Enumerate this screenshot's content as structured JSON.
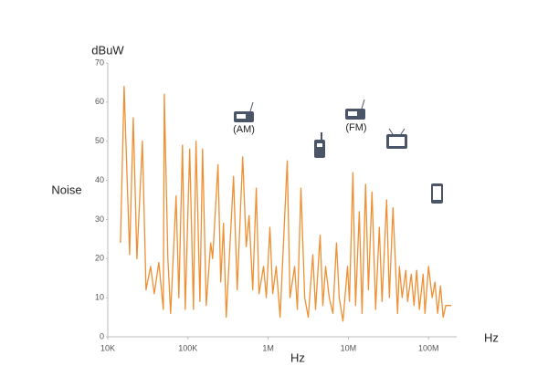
{
  "chart_data": {
    "type": "line",
    "y_unit_label": "dBuW",
    "ylabel": "Noise",
    "xlabel": "Hz",
    "x_unit_label": "Hz",
    "annotations": [
      "(AM)",
      "(FM)"
    ],
    "log_x": true,
    "color": "#ef8f33",
    "xlim": [
      10000,
      224000000
    ],
    "xticks": [
      {
        "value": 10000,
        "label": "10K"
      },
      {
        "value": 100000,
        "label": "100K"
      },
      {
        "value": 1000000,
        "label": "1M"
      },
      {
        "value": 10000000,
        "label": "10M"
      },
      {
        "value": 100000000,
        "label": "100M"
      }
    ],
    "ylim": [
      0,
      70
    ],
    "yticks": [
      0,
      10,
      20,
      30,
      40,
      50,
      60,
      70
    ],
    "x": [
      14400,
      16000,
      18700,
      20800,
      23100,
      27000,
      30000,
      34200,
      38000,
      43300,
      49300,
      50700,
      56200,
      60800,
      71100,
      76900,
      85500,
      92500,
      105000,
      117000,
      126000,
      141000,
      152000,
      169000,
      192000,
      203000,
      237000,
      256000,
      277000,
      300000,
      370000,
      411000,
      481000,
      533000,
      577000,
      641000,
      711000,
      769000,
      877000,
      949000,
      1050000,
      1140000,
      1260000,
      1410000,
      1730000,
      1870000,
      2140000,
      2310000,
      2560000,
      2850000,
      3160000,
      3600000,
      3900000,
      4440000,
      4810000,
      5200000,
      5770000,
      6410000,
      7110000,
      7690000,
      8550000,
      9750000,
      10300000,
      11400000,
      12300000,
      13700000,
      14800000,
      16400000,
      17800000,
      19700000,
      21900000,
      24300000,
      26300000,
      30000000,
      32400000,
      36000000,
      41100000,
      43300000,
      46800000,
      52000000,
      54800000,
      60800000,
      65800000,
      71100000,
      76900000,
      85500000,
      90200000,
      100000000,
      111000000,
      120000000,
      130000000,
      141000000,
      152000000,
      164000000,
      192000000
    ],
    "series": [
      {
        "name": "Noise",
        "color": "#ef8f33",
        "values": [
          24,
          64,
          21,
          56,
          20,
          50,
          12,
          18,
          11,
          19,
          7,
          62,
          20,
          6,
          36,
          10,
          49,
          7,
          48,
          7,
          50,
          9,
          48,
          8,
          24,
          20,
          44,
          14,
          29,
          5,
          41,
          12,
          46,
          23,
          31,
          12,
          38,
          11,
          18,
          10,
          28,
          11,
          18,
          5,
          45,
          10,
          18,
          7,
          38,
          10,
          5,
          21,
          7,
          26,
          8,
          18,
          10,
          6,
          24,
          10,
          4,
          18,
          9,
          42,
          8,
          32,
          6,
          39,
          12,
          37,
          7,
          28,
          9,
          35,
          10,
          33,
          6,
          18,
          10,
          17,
          9,
          16,
          8,
          17,
          7,
          16,
          6,
          18,
          10,
          14,
          6,
          13,
          5,
          8,
          8
        ]
      }
    ]
  }
}
